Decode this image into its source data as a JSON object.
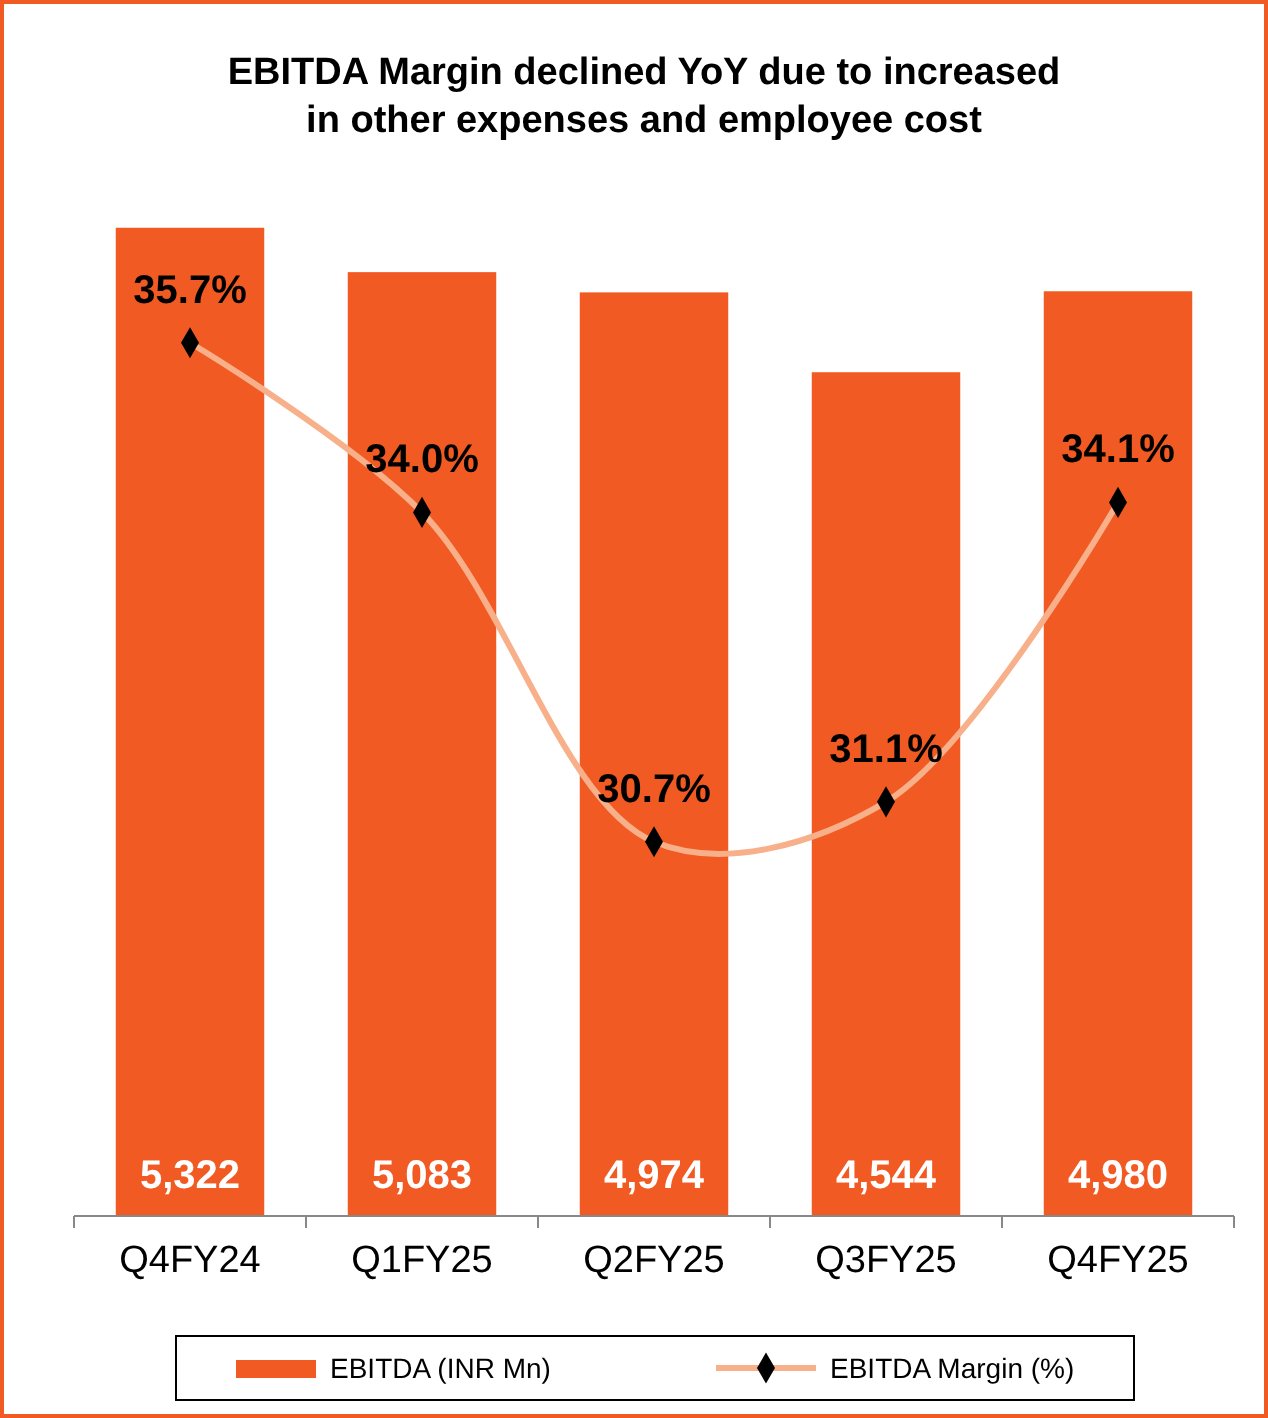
{
  "chart_data": {
    "type": "bar",
    "title": "EBITDA  Margin declined YoY due to increased in other expenses and employee cost",
    "categories": [
      "Q4FY24",
      "Q1FY25",
      "Q2FY25",
      "Q3FY25",
      "Q4FY25"
    ],
    "series": [
      {
        "name": "EBITDA (INR Mn)",
        "color": "#f15a22",
        "values": [
          5322,
          5083,
          4974,
          4544,
          4980
        ],
        "value_labels": [
          "5,322",
          "5,083",
          "4,974",
          "4,544",
          "4,980"
        ]
      },
      {
        "name": "EBITDA Margin (%)",
        "type": "line",
        "axis": "y2",
        "color": "#f8b08a",
        "values": [
          35.7,
          34.0,
          30.7,
          31.1,
          34.1
        ],
        "value_labels": [
          "35.7%",
          "34.0%",
          "30.7%",
          "31.1%",
          "34.1%"
        ]
      }
    ],
    "tick_labels": "x",
    "marker": "diamond",
    "legend": "bottom"
  }
}
